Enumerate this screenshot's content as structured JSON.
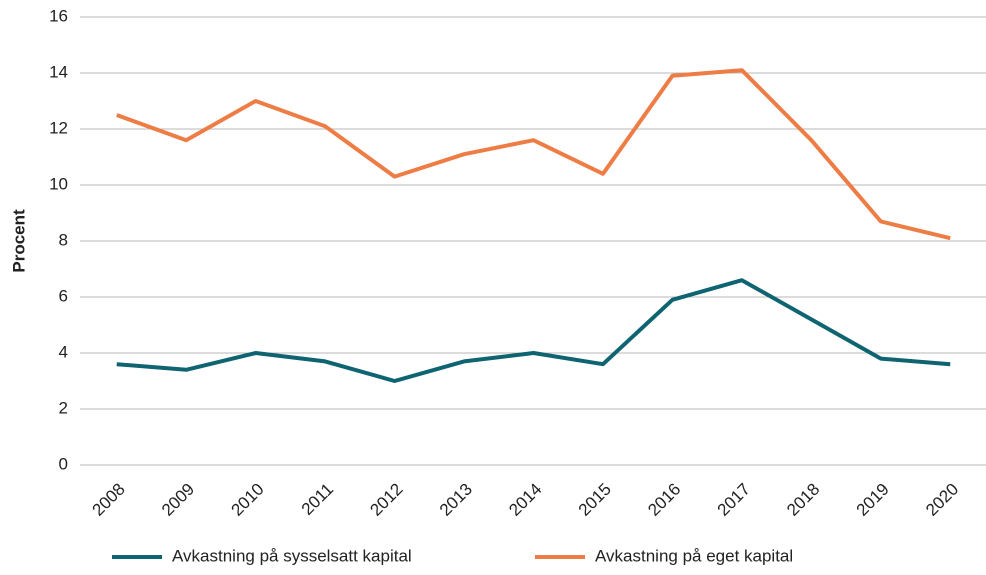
{
  "chart_data": {
    "type": "line",
    "y_label": "Procent",
    "categories": [
      "2008",
      "2009",
      "2010",
      "2011",
      "2012",
      "2013",
      "2014",
      "2015",
      "2016",
      "2017",
      "2018",
      "2019",
      "2020"
    ],
    "series": [
      {
        "name": "Avkastning på sysselsatt kapital",
        "color": "#0e6470",
        "values": [
          3.6,
          3.4,
          4.0,
          3.7,
          3.0,
          3.7,
          4.0,
          3.6,
          5.9,
          6.6,
          5.2,
          3.8,
          3.6
        ]
      },
      {
        "name": "Avkastning på eget kapital",
        "color": "#ee7d45",
        "values": [
          12.5,
          11.6,
          13.0,
          12.1,
          10.3,
          11.1,
          11.6,
          10.4,
          13.9,
          14.1,
          11.6,
          8.7,
          8.1
        ]
      }
    ],
    "ylim": [
      0,
      16
    ],
    "yticks": [
      0,
      2,
      4,
      6,
      8,
      10,
      12,
      14,
      16
    ],
    "grid": true,
    "legend": "bottom"
  }
}
